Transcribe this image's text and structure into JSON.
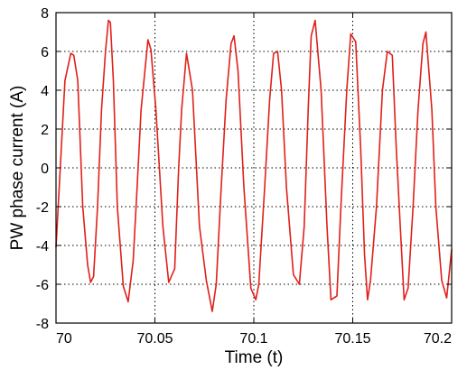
{
  "chart_data": {
    "type": "line",
    "xlabel": "Time (t)",
    "ylabel": "PW phase current (A)",
    "xlim": [
      70,
      70.2
    ],
    "ylim": [
      -8,
      8
    ],
    "xticks": [
      70,
      70.05,
      70.1,
      70.15,
      70.2
    ],
    "xtick_labels": [
      "70",
      "70.05",
      "70.1",
      "70.15",
      "70.2"
    ],
    "yticks": [
      -8,
      -6,
      -4,
      -2,
      0,
      2,
      4,
      6,
      8
    ],
    "ytick_labels": [
      "-8",
      "-6",
      "-4",
      "-2",
      "0",
      "2",
      "4",
      "6",
      "8"
    ],
    "grid": true,
    "series": [
      {
        "color": "#e0201b",
        "x": [
          70.0,
          70.0045,
          70.0075,
          70.009,
          70.011,
          70.0135,
          70.016,
          70.0175,
          70.019,
          70.021,
          70.023,
          70.025,
          70.0265,
          70.0275,
          70.029,
          70.031,
          70.034,
          70.0365,
          70.039,
          70.041,
          70.043,
          70.0465,
          70.048,
          70.0505,
          70.054,
          70.057,
          70.06,
          70.062,
          70.0635,
          70.066,
          70.069,
          70.0725,
          70.076,
          70.079,
          70.081,
          70.0835,
          70.086,
          70.0885,
          70.09,
          70.092,
          70.095,
          70.0985,
          70.101,
          70.1025,
          70.1055,
          70.108,
          70.11,
          70.112,
          70.114,
          70.1165,
          70.12,
          70.123,
          70.1255,
          70.1275,
          70.129,
          70.131,
          70.134,
          70.137,
          70.139,
          70.142,
          70.144,
          70.147,
          70.149,
          70.1515,
          70.154,
          70.156,
          70.1575,
          70.159,
          70.162,
          70.165,
          70.1675,
          70.17,
          70.172,
          70.174,
          70.176,
          70.178,
          70.1805,
          70.183,
          70.1855,
          70.187,
          70.19,
          70.192,
          70.195,
          70.1975,
          70.2
        ],
        "y": [
          -4.1,
          4.5,
          5.9,
          5.8,
          4.5,
          -2.0,
          -5.0,
          -5.9,
          -5.6,
          -2.0,
          3.0,
          6.0,
          7.6,
          7.5,
          4.5,
          -2.0,
          -6.1,
          -6.9,
          -4.8,
          -1.0,
          3.0,
          6.6,
          6.1,
          3.0,
          -3.0,
          -5.9,
          -5.2,
          0.0,
          3.0,
          5.9,
          4.0,
          -3.0,
          -5.8,
          -7.4,
          -6.0,
          -1.0,
          3.5,
          6.4,
          6.8,
          5.0,
          -1.0,
          -6.2,
          -6.8,
          -6.0,
          -1.0,
          3.5,
          5.9,
          6.0,
          4.0,
          -1.0,
          -5.5,
          -6.0,
          -3.0,
          3.0,
          6.8,
          7.6,
          4.0,
          -3.0,
          -6.8,
          -6.6,
          -2.0,
          4.0,
          6.9,
          6.5,
          1.0,
          -4.5,
          -6.8,
          -5.8,
          -2.0,
          4.0,
          6.0,
          5.8,
          1.0,
          -3.0,
          -6.8,
          -6.2,
          -2.0,
          3.0,
          6.4,
          7.0,
          3.0,
          -2.0,
          -5.8,
          -6.7,
          -4.2
        ]
      }
    ]
  }
}
